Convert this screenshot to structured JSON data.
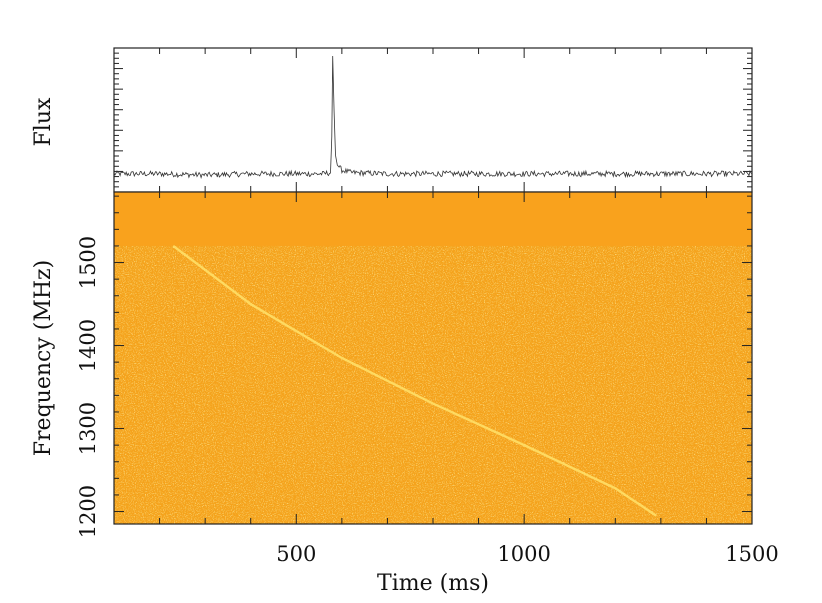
{
  "chart_data": [
    {
      "type": "line",
      "panel": "top",
      "ylabel": "Flux",
      "xlim": [
        100,
        1500
      ],
      "baseline_noise": "low",
      "x": [
        100,
        200,
        300,
        400,
        500,
        560,
        575,
        578,
        580,
        583,
        586,
        590,
        600,
        620,
        700,
        800,
        900,
        1000,
        1100,
        1200,
        1300,
        1400,
        1500
      ],
      "y": [
        0.05,
        0.05,
        0.04,
        0.05,
        0.05,
        0.05,
        0.06,
        0.35,
        1.0,
        0.55,
        0.2,
        0.12,
        0.08,
        0.06,
        0.05,
        0.05,
        0.05,
        0.05,
        0.05,
        0.05,
        0.05,
        0.05,
        0.05
      ],
      "peak_time_ms": 580,
      "color": "#333333"
    },
    {
      "type": "heatmap",
      "panel": "bottom",
      "xlabel": "Time (ms)",
      "ylabel": "Frequency (MHz)",
      "xlim": [
        100,
        1500
      ],
      "ylim": [
        1185,
        1585
      ],
      "x_ticks": [
        500,
        1000,
        1500
      ],
      "y_ticks": [
        1200,
        1300,
        1400,
        1500
      ],
      "flagged_band_mhz": [
        1520,
        1585
      ],
      "colors": {
        "background": "#f5a21c",
        "flagged": "#f9a21d",
        "low": "#e88a10",
        "high": "#ffe26a"
      },
      "dispersed_sweep": {
        "points": [
          {
            "time_ms": 230,
            "freq_mhz": 1520
          },
          {
            "time_ms": 400,
            "freq_mhz": 1450
          },
          {
            "time_ms": 600,
            "freq_mhz": 1385
          },
          {
            "time_ms": 800,
            "freq_mhz": 1330
          },
          {
            "time_ms": 1000,
            "freq_mhz": 1280
          },
          {
            "time_ms": 1200,
            "freq_mhz": 1228
          },
          {
            "time_ms": 1290,
            "freq_mhz": 1195
          }
        ]
      }
    }
  ]
}
